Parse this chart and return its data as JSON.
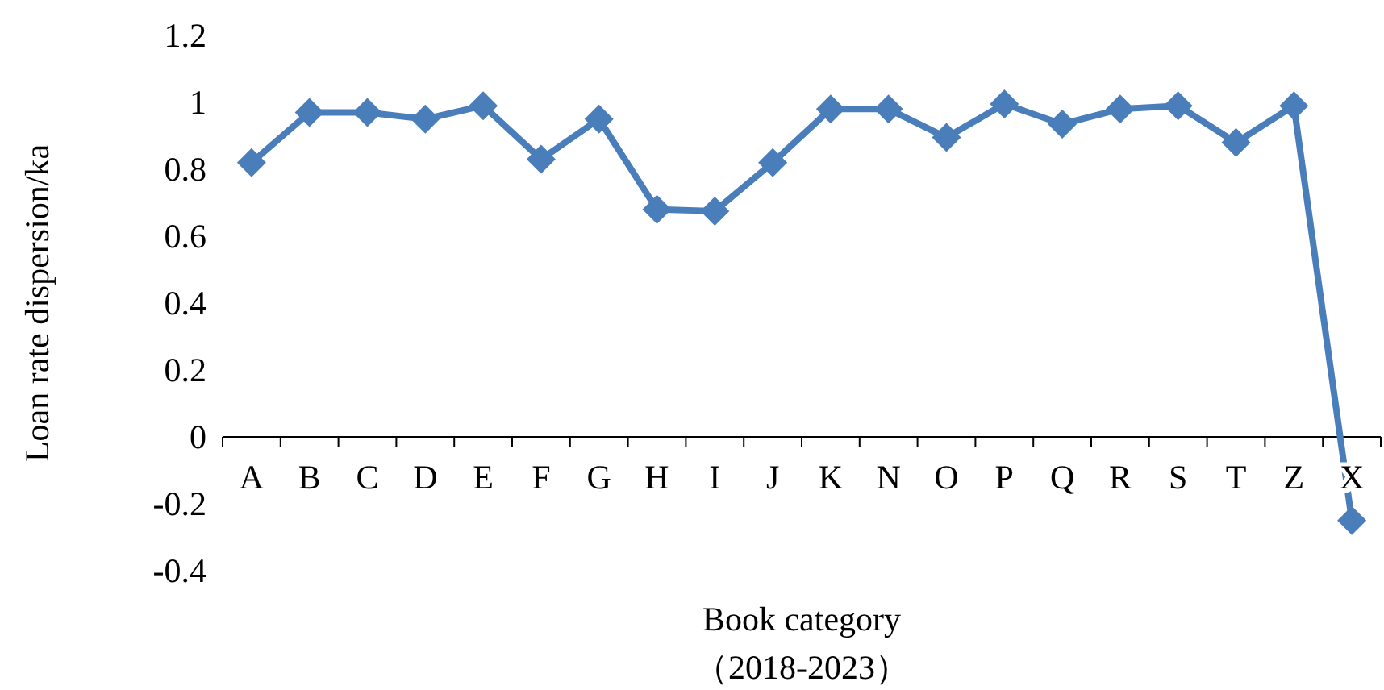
{
  "chart_data": {
    "type": "line",
    "xlabel": "Book category\n（2018-2023）",
    "ylabel": "Loan rate dispersion/ka",
    "categories": [
      "A",
      "B",
      "C",
      "D",
      "E",
      "F",
      "G",
      "H",
      "I",
      "J",
      "K",
      "N",
      "O",
      "P",
      "Q",
      "R",
      "S",
      "T",
      "Z",
      "X"
    ],
    "series": [
      {
        "color": "#4a7ebb",
        "values": [
          0.82,
          0.97,
          0.97,
          0.95,
          0.99,
          0.83,
          0.95,
          0.68,
          0.675,
          0.82,
          0.98,
          0.98,
          0.895,
          0.995,
          0.935,
          0.98,
          0.99,
          0.88,
          0.99,
          -0.25
        ]
      }
    ],
    "ylim": [
      -0.4,
      1.2
    ],
    "yticks": [
      -0.4,
      -0.2,
      0,
      0.2,
      0.4,
      0.6,
      0.8,
      1,
      1.2
    ],
    "marker": "diamond",
    "line_style": "solid"
  }
}
